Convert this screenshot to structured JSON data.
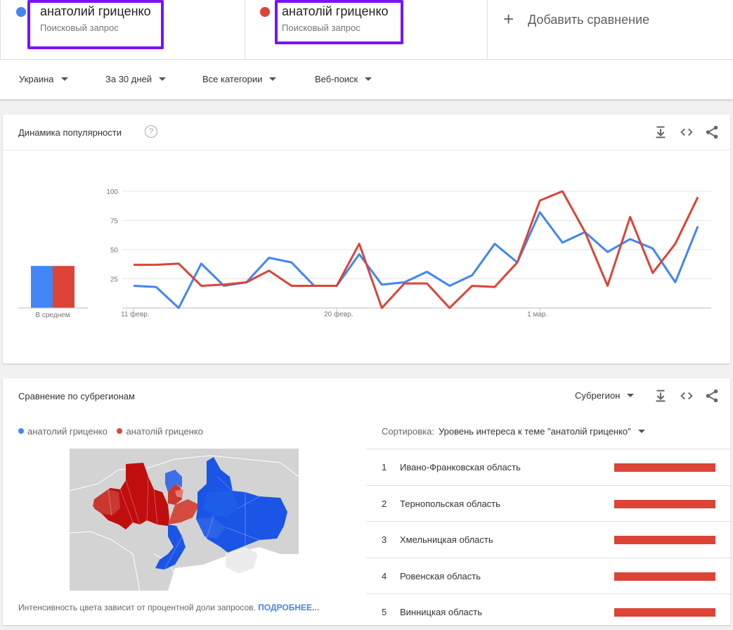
{
  "terms": [
    {
      "name": "анатолий гриценко",
      "sub": "Поисковый запрос",
      "color": "#4285f4"
    },
    {
      "name": "анатолій гриценко",
      "sub": "Поисковый запрос",
      "color": "#db4437"
    }
  ],
  "add_comparison": "Добавить сравнение",
  "filters": {
    "region": "Украина",
    "period": "За 30 дней",
    "category": "Все категории",
    "search_type": "Веб-поиск"
  },
  "interest_over_time": {
    "title": "Динамика популярности",
    "help_icon": "help-icon",
    "average_label": "В среднем"
  },
  "chart_data": {
    "type": "line",
    "title": "",
    "y_ticks": [
      "100",
      "75",
      "50",
      "25"
    ],
    "ylim": [
      0,
      100
    ],
    "x_labels": [
      {
        "text": "11 февр.",
        "index": 0
      },
      {
        "text": "20 февр.",
        "index": 9
      },
      {
        "text": "1 мар.",
        "index": 18
      }
    ],
    "x": [
      0,
      1,
      2,
      3,
      4,
      5,
      6,
      7,
      8,
      9,
      10,
      11,
      12,
      13,
      14,
      15,
      16,
      17,
      18,
      19,
      20,
      21,
      22,
      23,
      24,
      25
    ],
    "series": [
      {
        "name": "анатолий гриценко",
        "color": "#4285f4",
        "average": 36,
        "values": [
          19,
          18,
          0,
          38,
          19,
          22,
          43,
          39,
          19,
          19,
          46,
          20,
          22,
          31,
          19,
          28,
          55,
          39,
          82,
          56,
          65,
          48,
          59,
          51,
          22,
          70
        ]
      },
      {
        "name": "анатолій гриценко",
        "color": "#db4437",
        "average": 36,
        "values": [
          37,
          37,
          38,
          19,
          20,
          22,
          32,
          19,
          19,
          19,
          55,
          0,
          21,
          21,
          0,
          19,
          18,
          39,
          92,
          100,
          65,
          19,
          78,
          30,
          55,
          95
        ]
      }
    ],
    "grid": true
  },
  "subregions": {
    "title": "Сравнение по субрегионам",
    "selector": "Субрегион",
    "legend": [
      {
        "label": "анатолий гриценко",
        "color": "#4285f4"
      },
      {
        "label": "анатолій гриценко",
        "color": "#db4437"
      }
    ],
    "sort_label": "Сортировка:",
    "sort_value": "Уровень интереса к теме \"анатолій гриценко\"",
    "footnote": "Интенсивность цвета зависит от процентной доли запросов.",
    "footnote_link": "ПОДРОБНЕЕ...",
    "rows": [
      {
        "rank": "1",
        "name": "Ивано-Франковская область",
        "value": 100
      },
      {
        "rank": "2",
        "name": "Тернопольская область",
        "value": 100
      },
      {
        "rank": "3",
        "name": "Хмельницкая область",
        "value": 100
      },
      {
        "rank": "4",
        "name": "Ровенская область",
        "value": 100
      },
      {
        "rank": "5",
        "name": "Винницкая область",
        "value": 100
      }
    ]
  }
}
